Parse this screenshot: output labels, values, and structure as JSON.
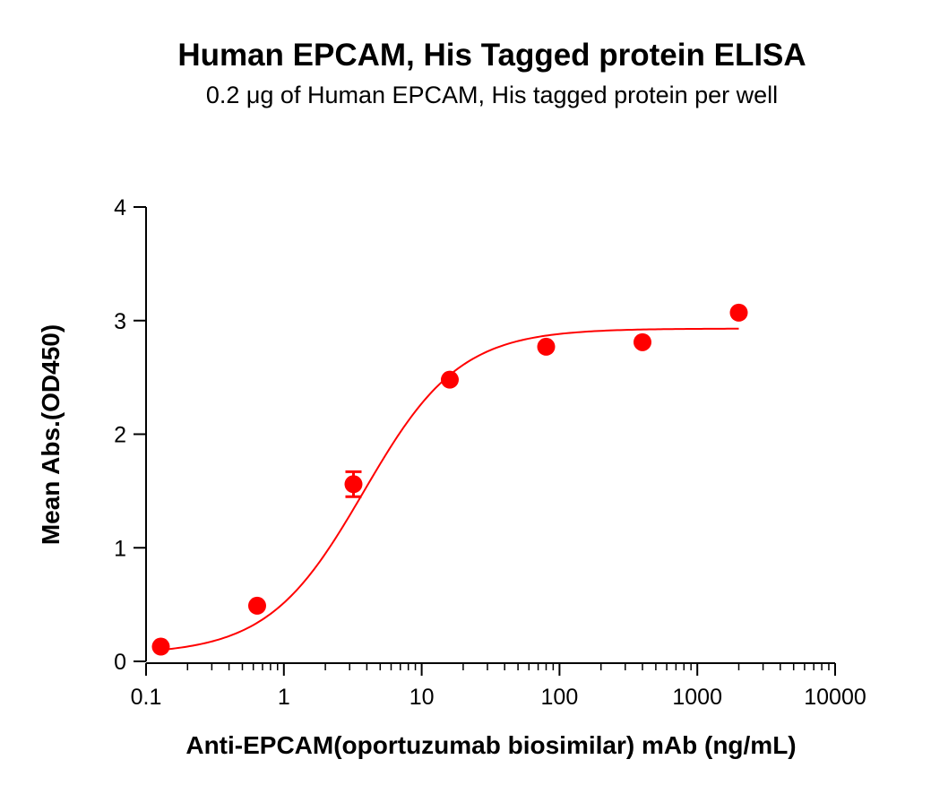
{
  "chart_data": {
    "type": "scatter",
    "title": "Human EPCAM, His Tagged protein ELISA",
    "subtitle": "0.2 μg of Human EPCAM, His tagged protein per well",
    "xlabel": "Anti-EPCAM(oportuzumab biosimilar) mAb (ng/mL)",
    "ylabel": "Mean Abs.(OD450)",
    "x_scale": "log",
    "xlim": [
      0.1,
      10000
    ],
    "ylim": [
      0,
      4
    ],
    "x_ticks": [
      0.1,
      1,
      10,
      100,
      1000,
      10000
    ],
    "x_tick_labels": [
      "0.1",
      "1",
      "10",
      "100",
      "1000",
      "10000"
    ],
    "y_ticks": [
      0,
      1,
      2,
      3,
      4
    ],
    "y_tick_labels": [
      "0",
      "1",
      "2",
      "3",
      "4"
    ],
    "grid": false,
    "color": "#ff0000",
    "points": [
      {
        "x": 0.128,
        "y": 0.13,
        "err": 0.0
      },
      {
        "x": 0.64,
        "y": 0.49,
        "err": 0.0
      },
      {
        "x": 3.2,
        "y": 1.56,
        "err": 0.11
      },
      {
        "x": 16,
        "y": 2.48,
        "err": 0.0
      },
      {
        "x": 80,
        "y": 2.77,
        "err": 0.0
      },
      {
        "x": 400,
        "y": 2.81,
        "err": 0.0
      },
      {
        "x": 2000,
        "y": 3.07,
        "err": 0.0
      }
    ],
    "fit": {
      "model": "4PL",
      "bottom": 0.06,
      "top": 2.93,
      "ec50": 3.8,
      "hill": 1.25,
      "x_range": [
        0.128,
        2000
      ]
    }
  }
}
